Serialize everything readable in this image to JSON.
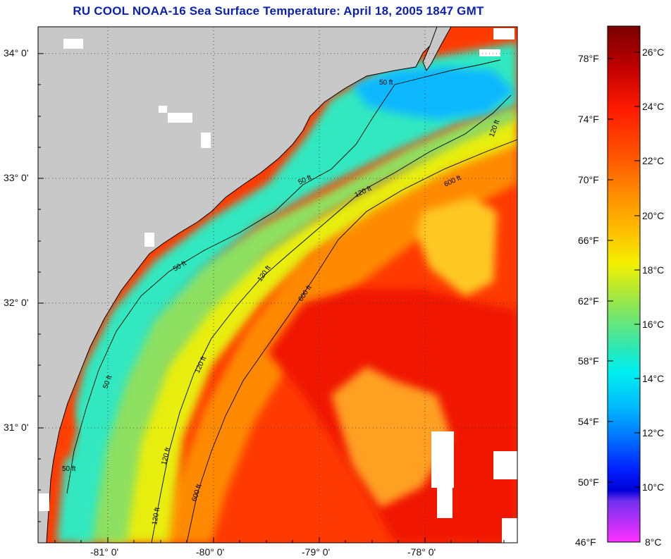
{
  "title": "RU COOL  NOAA-16  Sea Surface Temperature:  April 18, 2005 1847 GMT",
  "map": {
    "lat_labels": [
      "34° 0'",
      "33° 0'",
      "32° 0'",
      "31° 0'"
    ],
    "lon_labels": [
      "-81° 0'",
      "-80° 0'",
      "-79° 0'",
      "-78° 0'"
    ],
    "contour_labels": [
      "50 ft",
      "50 ft",
      "50 ft",
      "50 ft",
      "50 ft",
      "120 ft",
      "120 ft",
      "120 ft",
      "120 ft",
      "120 ft",
      "120 ft",
      "600 ft",
      "600 ft",
      "600 ft"
    ]
  },
  "colorbar": {
    "fahrenheit_labels": [
      "78°F",
      "74°F",
      "70°F",
      "66°F",
      "62°F",
      "58°F",
      "54°F",
      "50°F",
      "46°F"
    ],
    "celsius_labels": [
      "26°C",
      "24°C",
      "22°C",
      "20°C",
      "18°C",
      "16°C",
      "14°C",
      "12°C",
      "10°C",
      "8°C"
    ],
    "colors": [
      "#7a0000",
      "#c80000",
      "#ff1a00",
      "#ff5a00",
      "#ff9000",
      "#ffc000",
      "#f0f000",
      "#a8e640",
      "#40e6a0",
      "#00f0f0",
      "#00b0ff",
      "#0070ff",
      "#0020ff",
      "#0000e0",
      "#8030ff",
      "#ff30ff"
    ]
  }
}
